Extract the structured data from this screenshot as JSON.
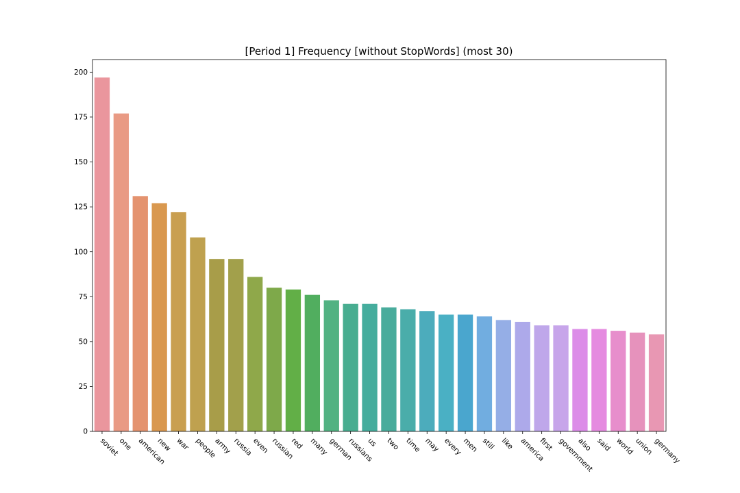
{
  "chart_data": {
    "type": "bar",
    "title": "[Period 1] Frequency [without StopWords] (most 30)",
    "xlabel": "",
    "ylabel": "",
    "ylim": [
      0,
      207
    ],
    "yticks": [
      0,
      25,
      50,
      75,
      100,
      125,
      150,
      175,
      200
    ],
    "grid": false,
    "legend": "none",
    "categories": [
      "soviet",
      "one",
      "american",
      "new",
      "war",
      "people",
      "army",
      "russia",
      "even",
      "russian",
      "red",
      "many",
      "german",
      "russians",
      "us",
      "two",
      "time",
      "may",
      "every",
      "men",
      "still",
      "like",
      "america",
      "first",
      "government",
      "also",
      "said",
      "world",
      "union",
      "germany"
    ],
    "values": [
      197,
      177,
      131,
      127,
      122,
      108,
      96,
      96,
      86,
      80,
      79,
      76,
      73,
      71,
      71,
      69,
      68,
      67,
      65,
      65,
      64,
      62,
      61,
      59,
      59,
      57,
      57,
      56,
      55,
      54
    ],
    "colors": [
      "#ea969d",
      "#e99a84",
      "#e4936f",
      "#d9984f",
      "#c99f50",
      "#bfa14f",
      "#a89d49",
      "#a2a04b",
      "#8fa84a",
      "#7ea94a",
      "#62af47",
      "#51ae5f",
      "#52b282",
      "#48ad90",
      "#45ad9d",
      "#49ac9c",
      "#4aadaa",
      "#4cacbc",
      "#4ab0c4",
      "#4aa6ce",
      "#71ade0",
      "#95aee6",
      "#ada9ea",
      "#bfa7ea",
      "#c7a5ea",
      "#dc8de8",
      "#e58be0",
      "#e78ecc",
      "#e692bc",
      "#e897b3"
    ]
  }
}
